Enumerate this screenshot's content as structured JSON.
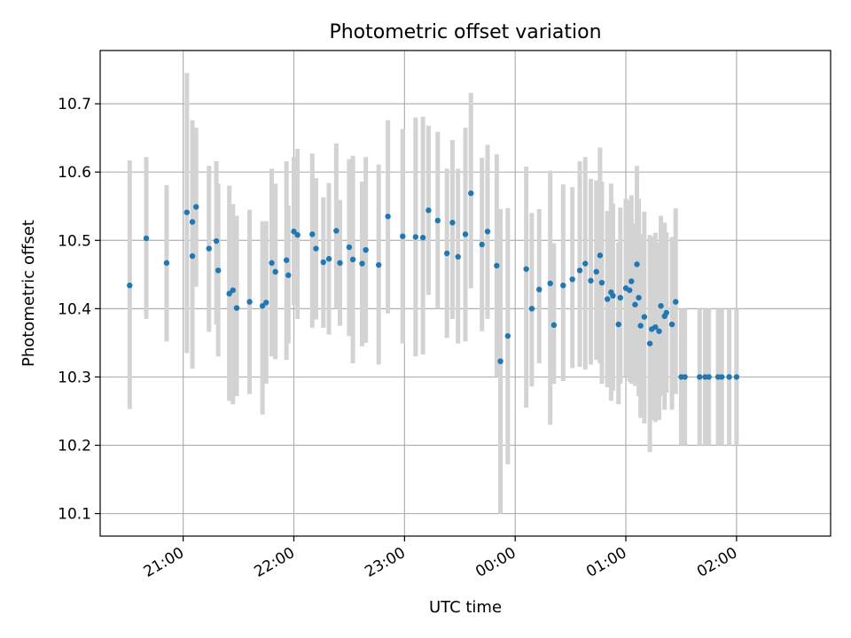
{
  "chart_data": {
    "type": "scatter",
    "title": "Photometric offset variation",
    "xlabel": "UTC time",
    "ylabel": "Photometric offset",
    "x_axis_type": "time",
    "x_tick_format": "HH:MM",
    "x_ticks": [
      "21:00",
      "22:00",
      "23:00",
      "00:00",
      "01:00",
      "02:00"
    ],
    "y_ticks": [
      10.1,
      10.2,
      10.3,
      10.4,
      10.5,
      10.6,
      10.7
    ],
    "xlim": [
      "20:15",
      "02:51"
    ],
    "ylim": [
      10.067,
      10.778
    ],
    "grid": true,
    "colors": {
      "points": "#1f77b4",
      "errorbars": "#d3d3d3",
      "grid": "#b0b0b0"
    },
    "series": [
      {
        "x": [
          "20:31",
          "20:40",
          "20:51",
          "21:02",
          "21:05",
          "21:05",
          "21:07",
          "21:14",
          "21:18",
          "21:19",
          "21:25",
          "21:27",
          "21:29",
          "21:36",
          "21:43",
          "21:45",
          "21:48",
          "21:50",
          "21:56",
          "21:57",
          "22:00",
          "22:02",
          "22:10",
          "22:12",
          "22:16",
          "22:19",
          "22:23",
          "22:25",
          "22:30",
          "22:32",
          "22:37",
          "22:39",
          "22:46",
          "22:51",
          "22:59",
          "23:06",
          "23:10",
          "23:13",
          "23:18",
          "23:23",
          "23:26",
          "23:29",
          "23:33",
          "23:36",
          "23:42",
          "23:45",
          "23:50",
          "23:52",
          "23:56",
          "00:06",
          "00:09",
          "00:13",
          "00:19",
          "00:21",
          "00:26",
          "00:31",
          "00:35",
          "00:38",
          "00:41",
          "00:44",
          "00:46",
          "00:47",
          "00:50",
          "00:52",
          "00:53",
          "00:56",
          "00:57",
          "01:00",
          "01:02",
          "01:03",
          "01:05",
          "01:06",
          "01:07",
          "01:08",
          "01:10",
          "01:13",
          "01:14",
          "01:16",
          "01:18",
          "01:19",
          "01:21",
          "01:22",
          "01:25",
          "01:27",
          "01:30",
          "01:32",
          "01:40",
          "01:43",
          "01:45",
          "01:50",
          "01:52",
          "01:56",
          "02:00"
        ],
        "y": [
          10.434,
          10.503,
          10.467,
          10.541,
          10.527,
          10.477,
          10.549,
          10.488,
          10.499,
          10.456,
          10.422,
          10.427,
          10.401,
          10.41,
          10.404,
          10.409,
          10.467,
          10.454,
          10.471,
          10.449,
          10.513,
          10.508,
          10.509,
          10.488,
          10.468,
          10.473,
          10.514,
          10.467,
          10.49,
          10.472,
          10.466,
          10.486,
          10.464,
          10.535,
          10.506,
          10.505,
          10.504,
          10.544,
          10.529,
          10.481,
          10.526,
          10.476,
          10.509,
          10.569,
          10.494,
          10.513,
          10.463,
          10.323,
          10.36,
          10.458,
          10.4,
          10.428,
          10.437,
          10.376,
          10.434,
          10.443,
          10.456,
          10.466,
          10.441,
          10.454,
          10.478,
          10.438,
          10.414,
          10.424,
          10.419,
          10.377,
          10.416,
          10.43,
          10.427,
          10.44,
          10.406,
          10.465,
          10.416,
          10.375,
          10.388,
          10.349,
          10.37,
          10.373,
          10.367,
          10.404,
          10.389,
          10.394,
          10.377,
          10.41,
          10.3,
          10.3,
          10.3,
          10.3,
          10.3,
          10.3,
          10.3,
          10.3,
          10.3
        ],
        "yerr_low": [
          10.253,
          10.385,
          10.352,
          10.335,
          10.52,
          10.312,
          10.432,
          10.366,
          10.377,
          10.33,
          10.265,
          10.26,
          10.272,
          10.275,
          10.245,
          10.29,
          10.33,
          10.326,
          10.325,
          10.349,
          10.405,
          10.385,
          10.372,
          10.384,
          10.372,
          10.362,
          10.4,
          10.375,
          10.36,
          10.32,
          10.345,
          10.35,
          10.318,
          10.393,
          10.349,
          10.33,
          10.333,
          10.42,
          10.4,
          10.357,
          10.385,
          10.349,
          10.352,
          10.43,
          10.367,
          10.385,
          10.3,
          10.1,
          10.172,
          10.255,
          10.286,
          10.32,
          10.23,
          10.29,
          10.294,
          10.313,
          10.315,
          10.311,
          10.318,
          10.325,
          10.32,
          10.29,
          10.285,
          10.265,
          10.28,
          10.26,
          10.29,
          10.3,
          10.293,
          10.29,
          10.287,
          10.32,
          10.272,
          10.24,
          10.232,
          10.19,
          10.237,
          10.234,
          10.237,
          10.272,
          10.252,
          10.277,
          10.252,
          10.275,
          10.2,
          10.2,
          10.2,
          10.2,
          10.2,
          10.2,
          10.2,
          10.2,
          10.2
        ],
        "yerr_high": [
          10.617,
          10.622,
          10.581,
          10.745,
          10.676,
          10.667,
          10.665,
          10.609,
          10.616,
          10.583,
          10.58,
          10.553,
          10.536,
          10.545,
          10.528,
          10.528,
          10.605,
          10.583,
          10.616,
          10.551,
          10.622,
          10.634,
          10.627,
          10.591,
          10.563,
          10.584,
          10.642,
          10.559,
          10.619,
          10.624,
          10.586,
          10.622,
          10.611,
          10.676,
          10.663,
          10.68,
          10.681,
          10.668,
          10.659,
          10.605,
          10.647,
          10.605,
          10.665,
          10.716,
          10.621,
          10.64,
          10.626,
          10.546,
          10.547,
          10.608,
          10.54,
          10.546,
          10.602,
          10.496,
          10.582,
          10.578,
          10.616,
          10.622,
          10.59,
          10.588,
          10.636,
          10.586,
          10.543,
          10.583,
          10.554,
          10.497,
          10.548,
          10.561,
          10.559,
          10.566,
          10.525,
          10.609,
          10.561,
          10.509,
          10.542,
          10.508,
          10.505,
          10.511,
          10.497,
          10.536,
          10.526,
          10.512,
          10.505,
          10.547,
          10.4,
          10.4,
          10.4,
          10.4,
          10.4,
          10.4,
          10.4,
          10.4,
          10.4
        ]
      }
    ]
  }
}
